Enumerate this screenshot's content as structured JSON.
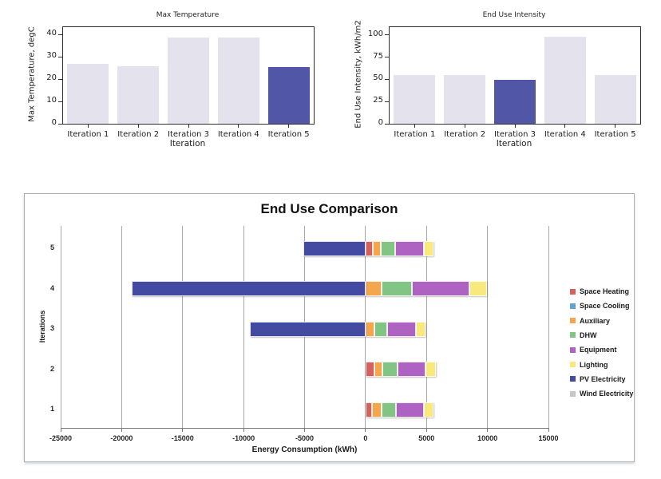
{
  "chart_data": [
    {
      "type": "bar",
      "title": "Max Temperature",
      "xlabel": "Iteration",
      "ylabel": "Max Temperature, degC",
      "categories": [
        "Iteration 1",
        "Iteration 2",
        "Iteration 3",
        "Iteration 4",
        "Iteration 5"
      ],
      "values": [
        26.9,
        25.7,
        38.8,
        38.8,
        25.5
      ],
      "yticks": [
        0,
        10,
        20,
        30,
        40
      ],
      "ylim": [
        0,
        43.4
      ],
      "grid": false,
      "bar_color": "#e3e2ed",
      "highlight_color": "#5157a6",
      "highlight_index": 4
    },
    {
      "type": "bar",
      "title": "End Use Intensity",
      "xlabel": "Iteration",
      "ylabel": "End Use Intensity, kWh/m2",
      "categories": [
        "Iteration 1",
        "Iteration 2",
        "Iteration 3",
        "Iteration 4",
        "Iteration 5"
      ],
      "values": [
        55,
        55,
        49,
        97.5,
        55
      ],
      "yticks": [
        0,
        25,
        50,
        75,
        100
      ],
      "ylim": [
        0,
        108.7
      ],
      "grid": false,
      "bar_color": "#e3e2ed",
      "highlight_color": "#5157a6",
      "highlight_index": 2
    },
    {
      "type": "stacked_bar_horizontal",
      "title": "End Use Comparison",
      "xlabel": "Energy Consumption (kWh)",
      "ylabel": "Iterations",
      "categories": [
        "1",
        "2",
        "3",
        "4",
        "5"
      ],
      "row_order_top_to_bottom": [
        "5",
        "4",
        "3",
        "2",
        "1"
      ],
      "xticks": [
        -25000,
        -20000,
        -15000,
        -10000,
        -5000,
        0,
        5000,
        10000,
        15000
      ],
      "xlim": [
        -25000,
        15000
      ],
      "grid": "vertical",
      "legend_position": "right",
      "series": [
        {
          "name": "Space Heating",
          "color": "#d6615c",
          "values": [
            550,
            700,
            0,
            0,
            600
          ]
        },
        {
          "name": "Space Cooling",
          "color": "#62a3d6",
          "values": [
            0,
            0,
            0,
            0,
            0
          ]
        },
        {
          "name": "Auxiliary",
          "color": "#f5a54b",
          "values": [
            800,
            700,
            700,
            1300,
            650
          ]
        },
        {
          "name": "DHW",
          "color": "#82c483",
          "values": [
            1150,
            1250,
            1100,
            2500,
            1150
          ]
        },
        {
          "name": "Equipment",
          "color": "#ae63c2",
          "values": [
            2300,
            2300,
            2350,
            4700,
            2400
          ]
        },
        {
          "name": "Lighting",
          "color": "#f9e87b",
          "values": [
            750,
            800,
            750,
            1450,
            750
          ]
        },
        {
          "name": "PV Electricity",
          "color": "#424aa2",
          "values": [
            0,
            0,
            -9500,
            -19200,
            -5100
          ]
        },
        {
          "name": "Wind Electricity",
          "color": "#c6c6c6",
          "values": [
            0,
            0,
            0,
            0,
            0
          ]
        }
      ]
    }
  ]
}
